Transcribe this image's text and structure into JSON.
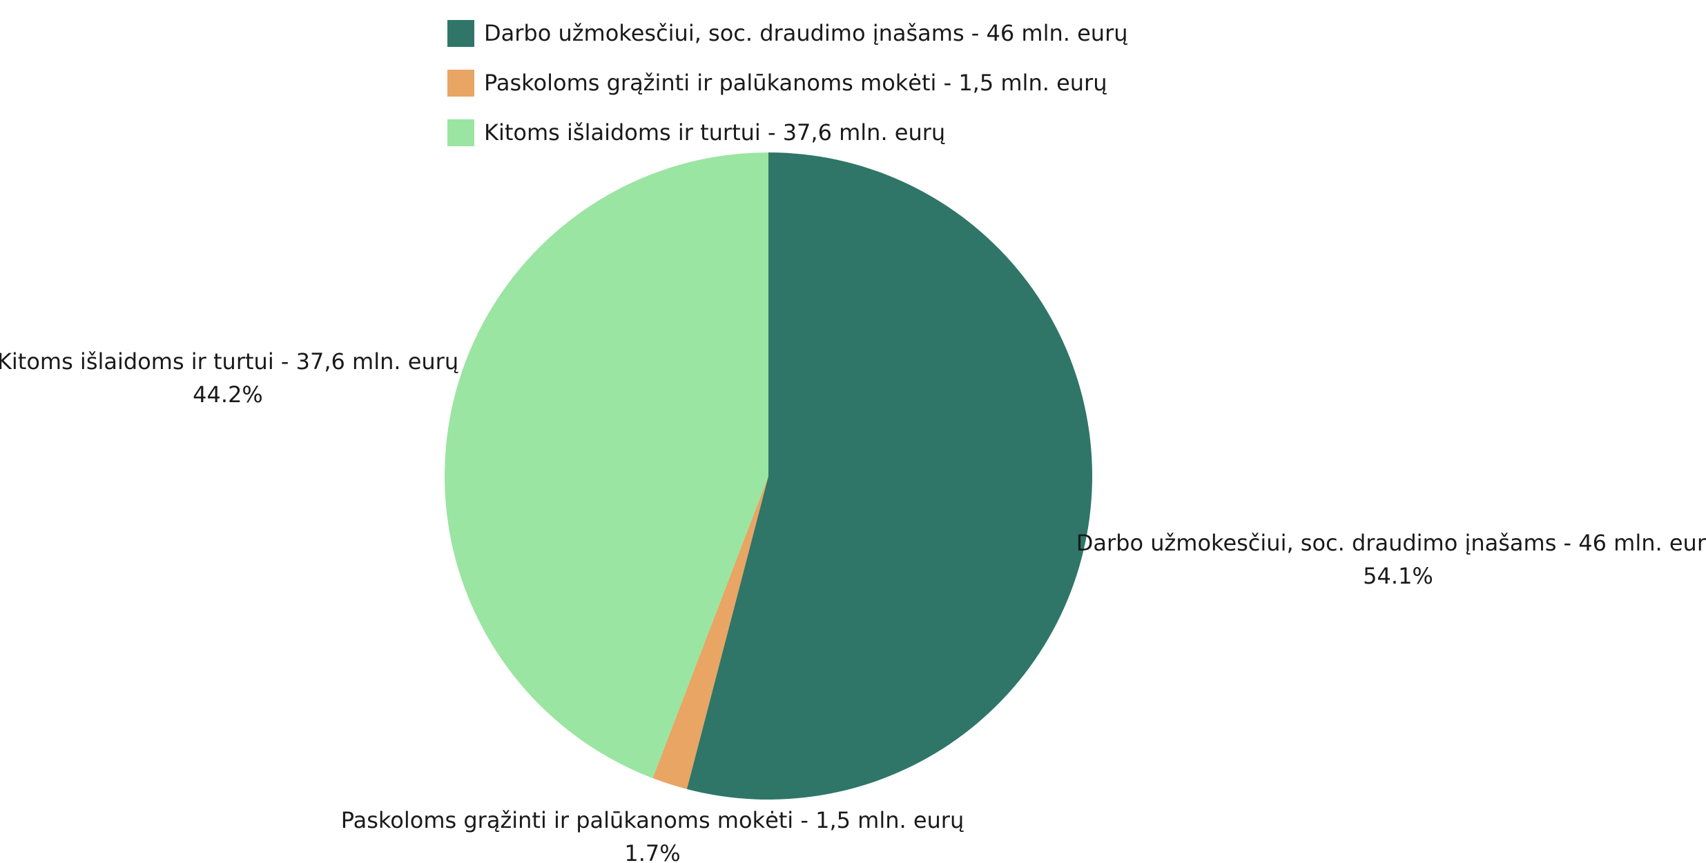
{
  "chart_data": {
    "type": "pie",
    "title": "",
    "slices": [
      {
        "label": "Darbo užmokesčiui, soc. draudimo įnašams - 46 mln. eurų",
        "value": 46,
        "percent_label": "54.1%",
        "color": "#2f7668"
      },
      {
        "label": "Paskoloms grąžinti ir palūkanoms mokėti - 1,5 mln. eurų",
        "value": 1.5,
        "percent_label": "1.7%",
        "color": "#e8a564"
      },
      {
        "label": "Kitoms išlaidoms ir turtui - 37,6 mln. eurų",
        "value": 37.6,
        "percent_label": "44.2%",
        "color": "#9ae5a1"
      }
    ],
    "start_angle_deg": 0,
    "direction": "clockwise",
    "legend_position": "top"
  }
}
